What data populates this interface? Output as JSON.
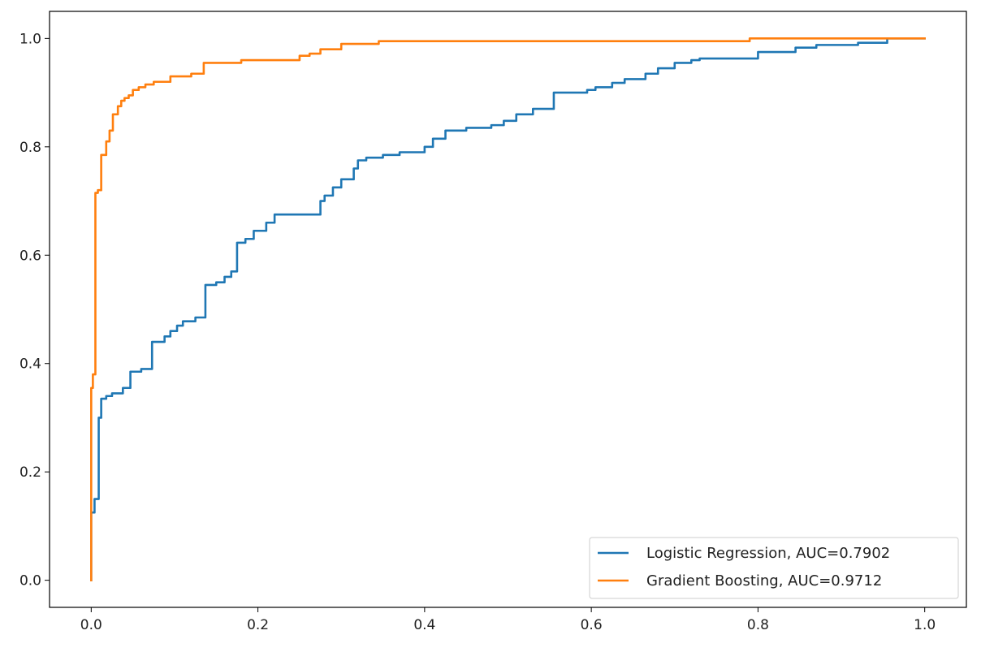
{
  "chart_data": {
    "type": "line",
    "title": "",
    "xlabel": "",
    "ylabel": "",
    "xlim": [
      -0.05,
      1.05
    ],
    "ylim": [
      -0.05,
      1.05
    ],
    "xticks": [
      "0.0",
      "0.2",
      "0.4",
      "0.6",
      "0.8",
      "1.0"
    ],
    "yticks": [
      "0.0",
      "0.2",
      "0.4",
      "0.6",
      "0.8",
      "1.0"
    ],
    "xtick_values": [
      0.0,
      0.2,
      0.4,
      0.6,
      0.8,
      1.0
    ],
    "ytick_values": [
      0.0,
      0.2,
      0.4,
      0.6,
      0.8,
      1.0
    ],
    "grid": false,
    "legend_position": "lower-right",
    "series": [
      {
        "name": "Logistic Regression, AUC=0.7902",
        "color": "#1f77b4",
        "x": [
          0.0,
          0.0,
          0.004,
          0.004,
          0.009,
          0.009,
          0.012,
          0.012,
          0.018,
          0.018,
          0.025,
          0.025,
          0.038,
          0.038,
          0.047,
          0.047,
          0.06,
          0.06,
          0.073,
          0.073,
          0.088,
          0.088,
          0.095,
          0.095,
          0.103,
          0.103,
          0.11,
          0.11,
          0.125,
          0.125,
          0.137,
          0.137,
          0.15,
          0.15,
          0.16,
          0.16,
          0.168,
          0.168,
          0.175,
          0.175,
          0.185,
          0.185,
          0.195,
          0.195,
          0.21,
          0.21,
          0.22,
          0.22,
          0.23,
          0.23,
          0.275,
          0.275,
          0.28,
          0.28,
          0.29,
          0.29,
          0.3,
          0.3,
          0.315,
          0.315,
          0.32,
          0.32,
          0.33,
          0.33,
          0.35,
          0.35,
          0.37,
          0.37,
          0.4,
          0.4,
          0.41,
          0.41,
          0.425,
          0.425,
          0.45,
          0.45,
          0.48,
          0.48,
          0.495,
          0.495,
          0.51,
          0.51,
          0.53,
          0.53,
          0.555,
          0.555,
          0.595,
          0.595,
          0.605,
          0.605,
          0.625,
          0.625,
          0.64,
          0.64,
          0.665,
          0.665,
          0.68,
          0.68,
          0.7,
          0.7,
          0.72,
          0.72,
          0.73,
          0.73,
          0.8,
          0.8,
          0.845,
          0.845,
          0.87,
          0.87,
          0.92,
          0.92,
          0.955,
          0.955,
          1.0
        ],
        "y": [
          0.0,
          0.125,
          0.125,
          0.15,
          0.15,
          0.3,
          0.3,
          0.335,
          0.335,
          0.34,
          0.34,
          0.345,
          0.345,
          0.355,
          0.355,
          0.385,
          0.385,
          0.39,
          0.39,
          0.44,
          0.44,
          0.45,
          0.45,
          0.46,
          0.46,
          0.47,
          0.47,
          0.478,
          0.478,
          0.485,
          0.485,
          0.545,
          0.545,
          0.55,
          0.55,
          0.56,
          0.56,
          0.57,
          0.57,
          0.623,
          0.623,
          0.63,
          0.63,
          0.645,
          0.645,
          0.66,
          0.66,
          0.675,
          0.675,
          0.675,
          0.675,
          0.7,
          0.7,
          0.71,
          0.71,
          0.725,
          0.725,
          0.74,
          0.74,
          0.76,
          0.76,
          0.775,
          0.775,
          0.78,
          0.78,
          0.785,
          0.785,
          0.79,
          0.79,
          0.8,
          0.8,
          0.815,
          0.815,
          0.83,
          0.83,
          0.835,
          0.835,
          0.84,
          0.84,
          0.848,
          0.848,
          0.86,
          0.86,
          0.87,
          0.87,
          0.9,
          0.9,
          0.905,
          0.905,
          0.91,
          0.91,
          0.918,
          0.918,
          0.925,
          0.925,
          0.935,
          0.935,
          0.945,
          0.945,
          0.955,
          0.955,
          0.96,
          0.96,
          0.963,
          0.963,
          0.975,
          0.975,
          0.983,
          0.983,
          0.988,
          0.988,
          0.992,
          0.992,
          1.0,
          1.0
        ]
      },
      {
        "name": "Gradient Boosting, AUC=0.9712",
        "color": "#ff7f0e",
        "x": [
          0.0,
          0.0,
          0.0,
          0.0,
          0.002,
          0.002,
          0.005,
          0.005,
          0.008,
          0.008,
          0.012,
          0.012,
          0.018,
          0.018,
          0.022,
          0.022,
          0.026,
          0.026,
          0.032,
          0.032,
          0.036,
          0.036,
          0.04,
          0.04,
          0.045,
          0.045,
          0.05,
          0.05,
          0.057,
          0.057,
          0.065,
          0.065,
          0.075,
          0.075,
          0.095,
          0.095,
          0.12,
          0.12,
          0.135,
          0.135,
          0.18,
          0.18,
          0.25,
          0.25,
          0.262,
          0.262,
          0.275,
          0.275,
          0.3,
          0.3,
          0.345,
          0.345,
          0.79,
          0.79,
          1.0
        ],
        "y": [
          0.0,
          0.12,
          0.12,
          0.355,
          0.355,
          0.38,
          0.38,
          0.715,
          0.715,
          0.72,
          0.72,
          0.785,
          0.785,
          0.81,
          0.81,
          0.83,
          0.83,
          0.86,
          0.86,
          0.875,
          0.875,
          0.885,
          0.885,
          0.89,
          0.89,
          0.895,
          0.895,
          0.905,
          0.905,
          0.91,
          0.91,
          0.915,
          0.915,
          0.92,
          0.92,
          0.93,
          0.93,
          0.935,
          0.935,
          0.955,
          0.955,
          0.96,
          0.96,
          0.968,
          0.968,
          0.972,
          0.972,
          0.98,
          0.98,
          0.99,
          0.99,
          0.995,
          0.995,
          1.0,
          1.0
        ]
      }
    ]
  }
}
